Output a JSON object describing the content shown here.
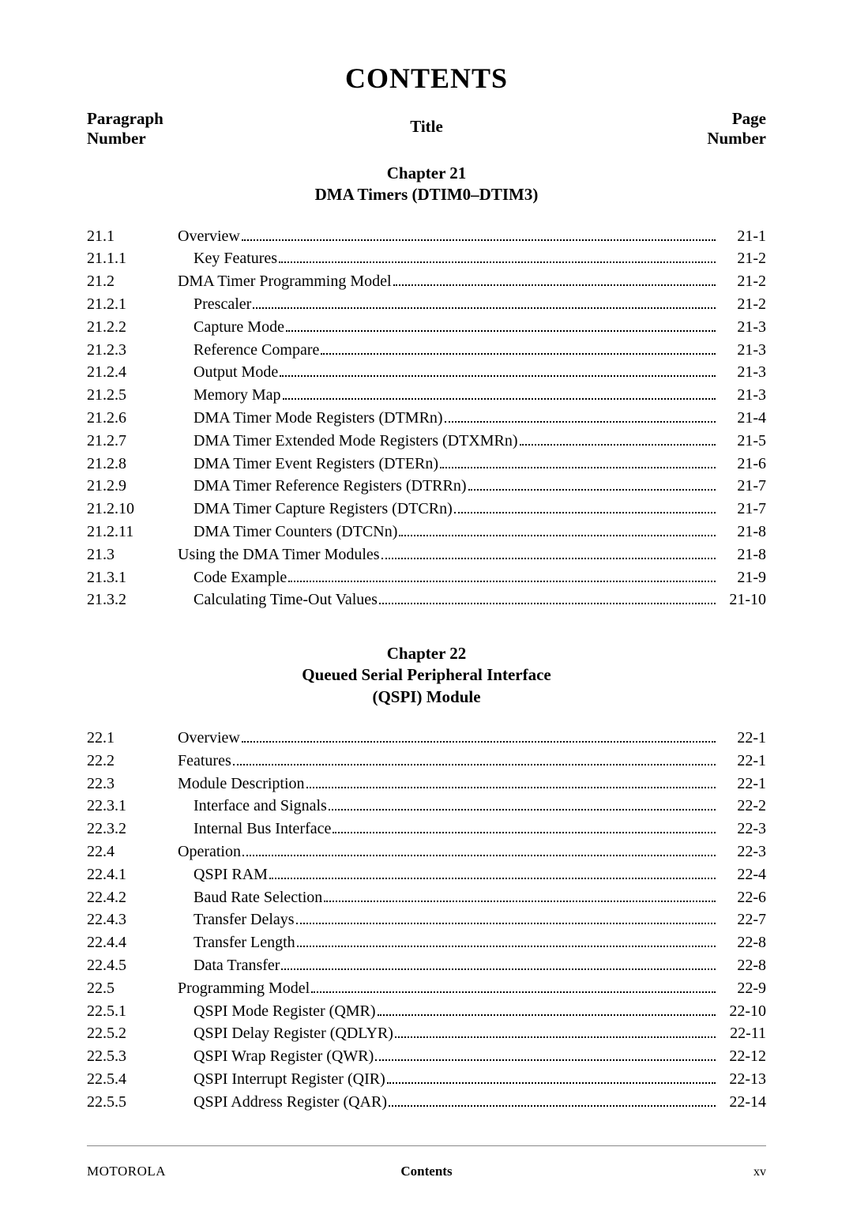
{
  "main_title": "CONTENTS",
  "column_headers": {
    "left_line1": "Paragraph",
    "left_line2": "Number",
    "mid": "Title",
    "right_line1": "Page",
    "right_line2": "Number"
  },
  "chapters": [
    {
      "heading_line1": "Chapter 21",
      "heading_line2": "DMA Timers (DTIM0–DTIM3)",
      "entries": [
        {
          "num": "21.1",
          "indent": 0,
          "title": "Overview",
          "page": "21-1"
        },
        {
          "num": "21.1.1",
          "indent": 1,
          "title": "Key Features",
          "page": "21-2"
        },
        {
          "num": "21.2",
          "indent": 0,
          "title": "DMA Timer Programming Model",
          "page": "21-2"
        },
        {
          "num": "21.2.1",
          "indent": 1,
          "title": "Prescaler",
          "page": "21-2"
        },
        {
          "num": "21.2.2",
          "indent": 1,
          "title": "Capture Mode",
          "page": "21-3"
        },
        {
          "num": "21.2.3",
          "indent": 1,
          "title": "Reference Compare",
          "page": "21-3"
        },
        {
          "num": "21.2.4",
          "indent": 1,
          "title": "Output Mode",
          "page": "21-3"
        },
        {
          "num": "21.2.5",
          "indent": 1,
          "title": "Memory Map",
          "page": "21-3"
        },
        {
          "num": "21.2.6",
          "indent": 1,
          "title": "DMA Timer Mode Registers (DTMRn)",
          "page": "21-4"
        },
        {
          "num": "21.2.7",
          "indent": 1,
          "title": "DMA Timer Extended Mode Registers (DTXMRn)",
          "page": "21-5"
        },
        {
          "num": "21.2.8",
          "indent": 1,
          "title": "DMA Timer Event Registers (DTERn)",
          "page": "21-6"
        },
        {
          "num": "21.2.9",
          "indent": 1,
          "title": "DMA Timer Reference Registers (DTRRn)",
          "page": "21-7"
        },
        {
          "num": "21.2.10",
          "indent": 1,
          "title": "DMA Timer Capture Registers (DTCRn)",
          "page": "21-7"
        },
        {
          "num": "21.2.11",
          "indent": 1,
          "title": "DMA Timer Counters (DTCNn)",
          "page": "21-8"
        },
        {
          "num": "21.3",
          "indent": 0,
          "title": "Using the DMA Timer Modules",
          "page": "21-8"
        },
        {
          "num": "21.3.1",
          "indent": 1,
          "title": "Code Example",
          "page": "21-9"
        },
        {
          "num": "21.3.2",
          "indent": 1,
          "title": "Calculating Time-Out Values",
          "page": "21-10"
        }
      ]
    },
    {
      "heading_line1": "Chapter 22",
      "heading_line2": "Queued Serial Peripheral Interface",
      "heading_line3": "(QSPI) Module",
      "entries": [
        {
          "num": "22.1",
          "indent": 0,
          "title": "Overview",
          "page": "22-1"
        },
        {
          "num": "22.2",
          "indent": 0,
          "title": "Features",
          "page": "22-1"
        },
        {
          "num": "22.3",
          "indent": 0,
          "title": "Module Description",
          "page": "22-1"
        },
        {
          "num": "22.3.1",
          "indent": 1,
          "title": "Interface and Signals",
          "page": "22-2"
        },
        {
          "num": "22.3.2",
          "indent": 1,
          "title": "Internal Bus Interface",
          "page": "22-3"
        },
        {
          "num": "22.4",
          "indent": 0,
          "title": "Operation",
          "page": "22-3"
        },
        {
          "num": "22.4.1",
          "indent": 1,
          "title": "QSPI RAM",
          "page": "22-4"
        },
        {
          "num": "22.4.2",
          "indent": 1,
          "title": "Baud Rate Selection",
          "page": "22-6"
        },
        {
          "num": "22.4.3",
          "indent": 1,
          "title": "Transfer Delays",
          "page": "22-7"
        },
        {
          "num": "22.4.4",
          "indent": 1,
          "title": "Transfer Length",
          "page": "22-8"
        },
        {
          "num": "22.4.5",
          "indent": 1,
          "title": "Data Transfer",
          "page": "22-8"
        },
        {
          "num": "22.5",
          "indent": 0,
          "title": "Programming Model",
          "page": "22-9"
        },
        {
          "num": "22.5.1",
          "indent": 1,
          "title": "QSPI Mode Register (QMR)",
          "page": "22-10"
        },
        {
          "num": "22.5.2",
          "indent": 1,
          "title": "QSPI Delay Register (QDLYR)",
          "page": "22-11"
        },
        {
          "num": "22.5.3",
          "indent": 1,
          "title": "QSPI Wrap Register (QWR)",
          "page": "22-12"
        },
        {
          "num": "22.5.4",
          "indent": 1,
          "title": "QSPI Interrupt Register (QIR)",
          "page": "22-13"
        },
        {
          "num": "22.5.5",
          "indent": 1,
          "title": "QSPI Address Register (QAR)",
          "page": "22-14"
        }
      ]
    }
  ],
  "footer": {
    "left": "MOTOROLA",
    "mid": "Contents",
    "right": "xv"
  }
}
